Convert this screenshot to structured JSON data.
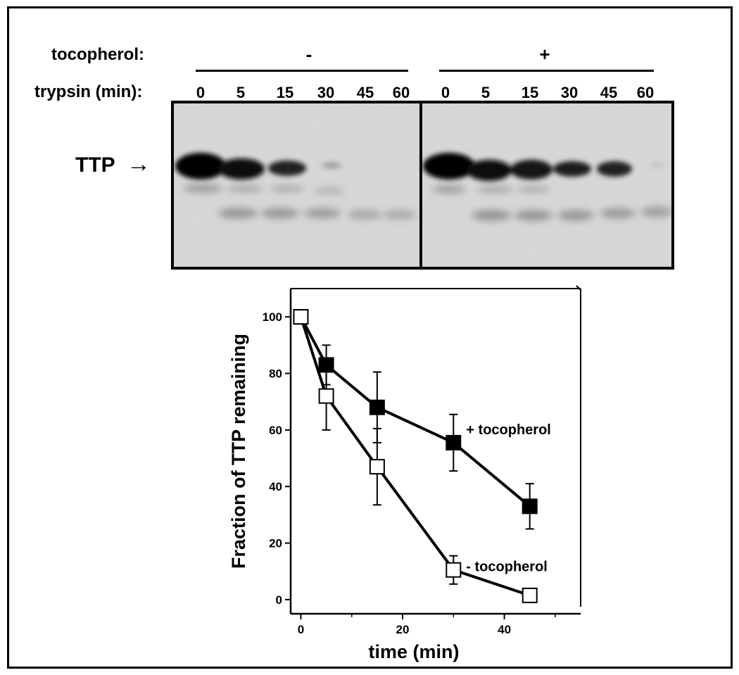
{
  "gel": {
    "tocopherol_label": "tocopherol:",
    "trypsin_label": "trypsin (min):",
    "minus_sign": "-",
    "plus_sign": "+",
    "lanes_minus": [
      "0",
      "5",
      "15",
      "30",
      "45",
      "60"
    ],
    "lanes_plus": [
      "0",
      "5",
      "15",
      "30",
      "45",
      "60"
    ],
    "band_label": "TTP",
    "arrow": "→"
  },
  "chart_data": {
    "type": "line",
    "title": "",
    "xlabel": "time (min)",
    "ylabel": "Fraction of TTP remaining",
    "xlim": [
      -2,
      55
    ],
    "ylim": [
      -5,
      110
    ],
    "xticks": [
      0,
      20,
      40
    ],
    "yticks": [
      0,
      20,
      40,
      60,
      80,
      100
    ],
    "series": [
      {
        "name": "+ tocopherol",
        "marker": "filled-square",
        "x": [
          0,
          5,
          15,
          30,
          45
        ],
        "y": [
          100,
          83,
          68,
          55.5,
          33
        ],
        "error": [
          0,
          7,
          12.5,
          10,
          8
        ]
      },
      {
        "name": "- tocopherol",
        "marker": "open-square",
        "x": [
          0,
          5,
          15,
          30,
          45
        ],
        "y": [
          100,
          72,
          47,
          10.5,
          1.5
        ],
        "error": [
          0,
          12,
          13.5,
          5,
          0
        ]
      }
    ]
  }
}
